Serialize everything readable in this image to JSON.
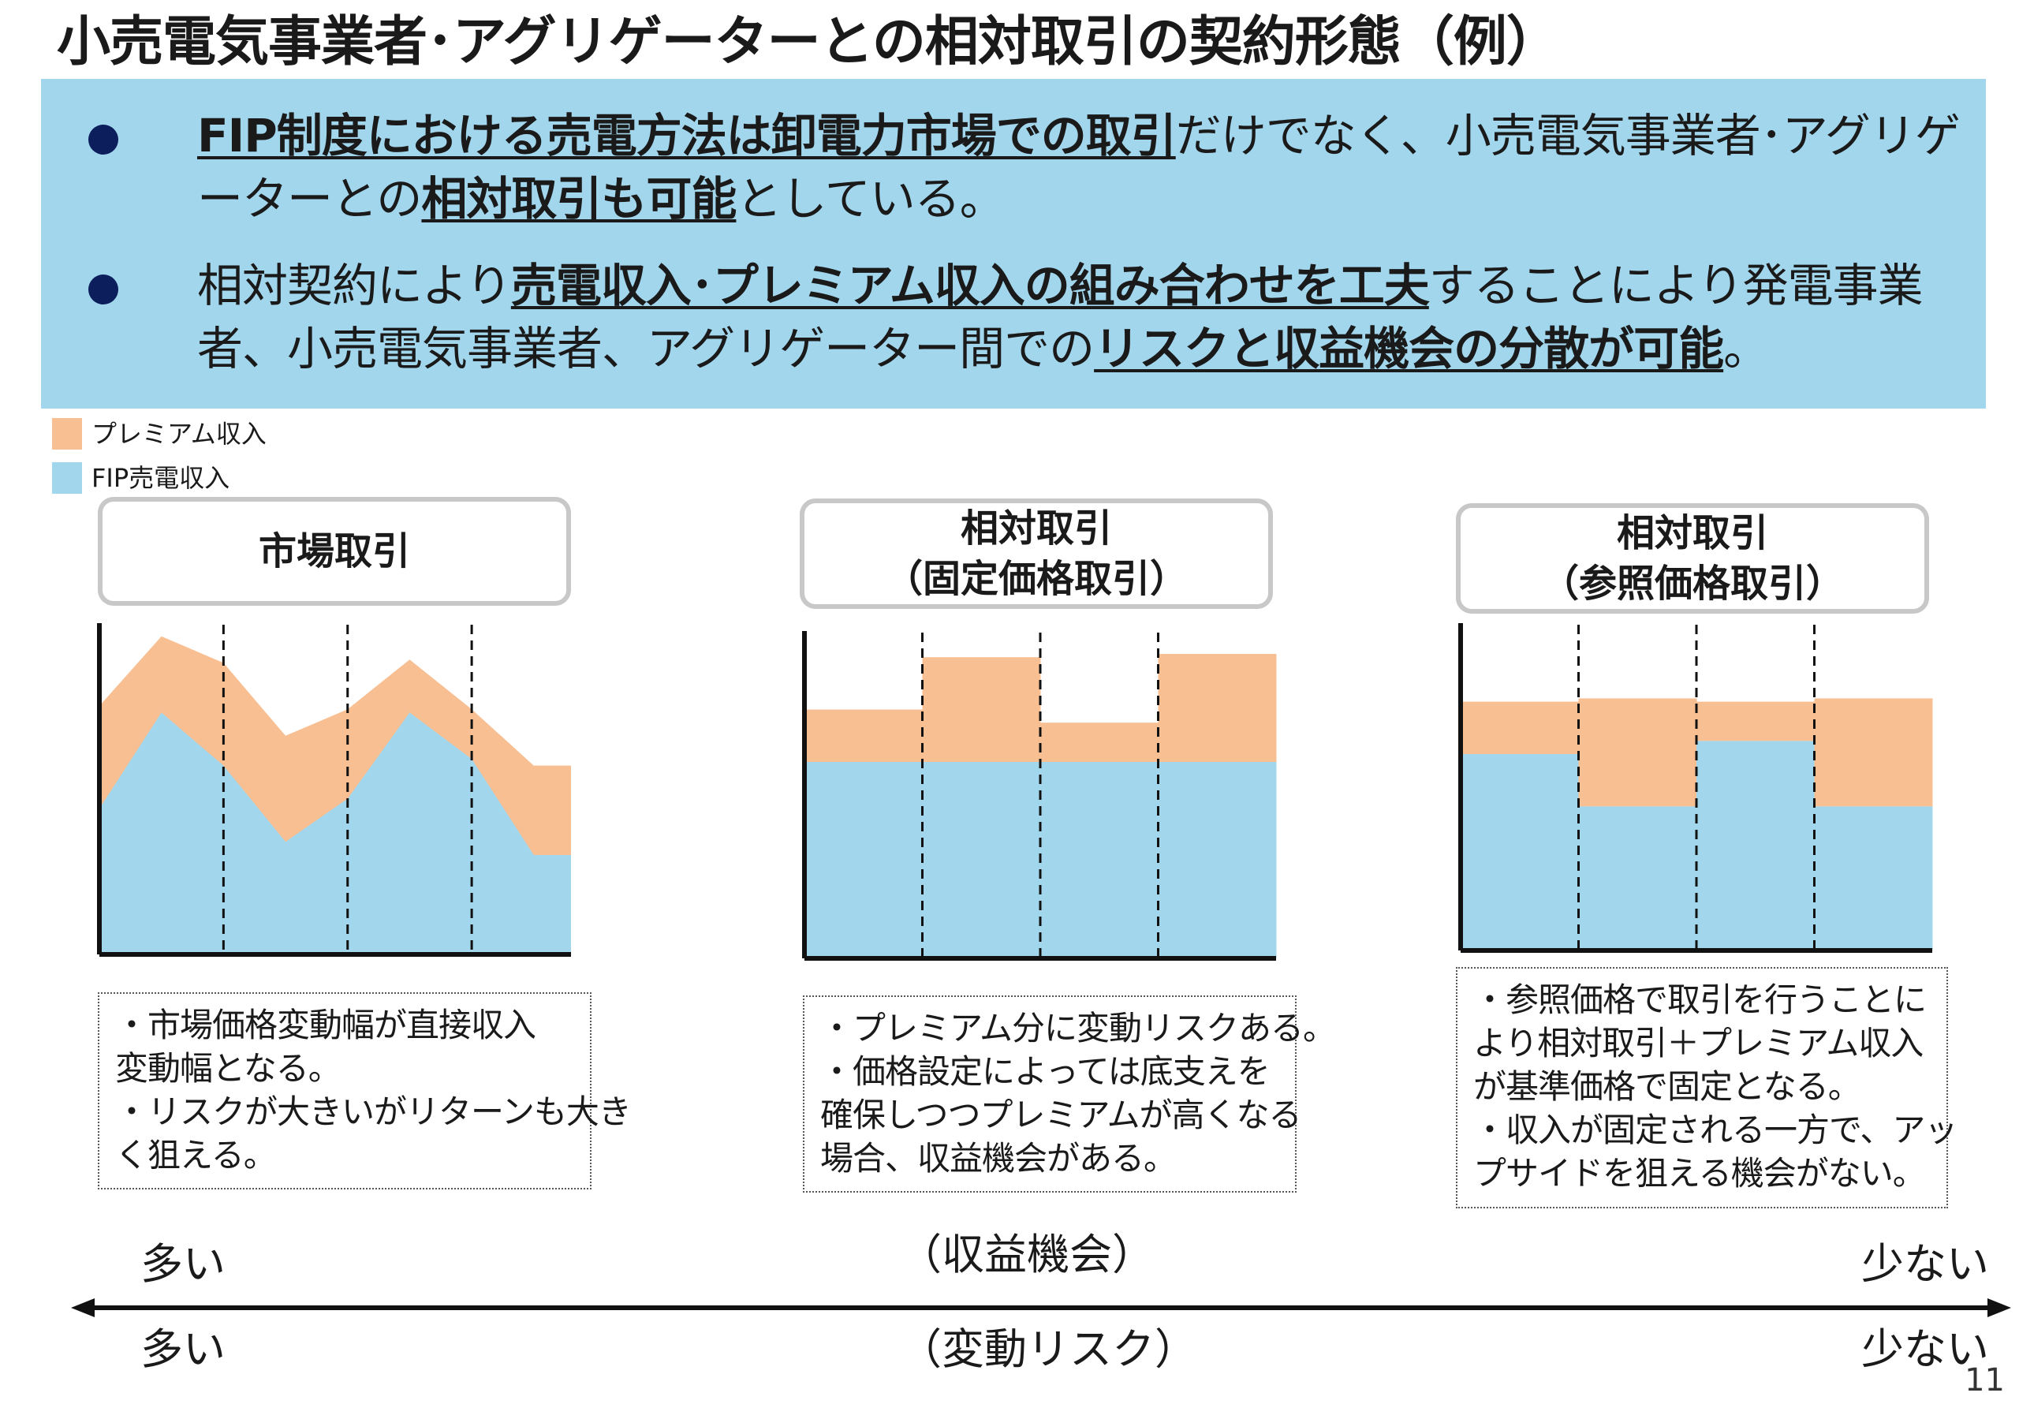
{
  "title": "小売電気事業者･アグリゲーターとの相対取引の契約形態（例）",
  "bullets": [
    {
      "parts": [
        {
          "text": "FIP制度における売電方法は卸電力市場での取引",
          "bold": true
        },
        {
          "text": "だけでなく、小売電気事業者･アグリゲーターとの",
          "bold": false
        },
        {
          "text": "相対取引も可能",
          "bold": true
        },
        {
          "text": "としている。",
          "bold": false
        }
      ]
    },
    {
      "parts": [
        {
          "text": "相対契約により",
          "bold": false
        },
        {
          "text": "売電収入･プレミアム収入の組み合わせを工夫",
          "bold": true
        },
        {
          "text": "することにより発電事業者、小売電気事業者、アグリゲーター間での",
          "bold": false
        },
        {
          "text": "リスクと収益機会の分散が可能",
          "bold": true
        },
        {
          "text": "。",
          "bold": false
        }
      ]
    }
  ],
  "legend": [
    {
      "label": "プレミアム収入",
      "color": "#f8bf93"
    },
    {
      "label": "FIP売電収入",
      "color": "#a2d6ec"
    }
  ],
  "panels": [
    {
      "title_lines": [
        "市場取引"
      ],
      "notes": [
        "・市場価格変動幅が直接収入",
        "変動幅となる。",
        "・リスクが大きいがリターンも大き",
        "く狙える。"
      ]
    },
    {
      "title_lines": [
        "相対取引",
        "（固定価格取引）"
      ],
      "notes": [
        "・プレミアム分に変動リスクある。",
        "・価格設定によっては底支えを",
        "確保しつつプレミアムが高くなる",
        "場合、収益機会がある。"
      ]
    },
    {
      "title_lines": [
        "相対取引",
        "（参照価格取引）"
      ],
      "notes": [
        "・参照価格で取引を行うことに",
        "より相対取引＋プレミアム収入",
        "が基準価格で固定となる。",
        "・収入が固定される一方で、アッ",
        "プサイドを狙える機会がない。"
      ]
    }
  ],
  "chart_data": [
    {
      "type": "area",
      "series": [
        {
          "name": "FIP売電収入",
          "x": [
            0,
            0.5,
            1,
            1.5,
            2,
            2.5,
            3,
            3.5,
            4
          ],
          "values": [
            44,
            73,
            57,
            34,
            47,
            73,
            59,
            30,
            30
          ]
        },
        {
          "name": "プレミアム収入",
          "x": [
            0,
            0.5,
            1,
            1.5,
            2,
            2.5,
            3,
            3.5,
            4
          ],
          "values": [
            31,
            23,
            31,
            32,
            27,
            16,
            15,
            27,
            27
          ]
        }
      ],
      "xlim": [
        0,
        3.8
      ],
      "ylim": [
        0,
        100
      ]
    },
    {
      "type": "bar",
      "categories": [
        "1",
        "2",
        "3",
        "4"
      ],
      "series": [
        {
          "name": "FIP売電収入",
          "values": [
            60,
            60,
            60,
            60
          ]
        },
        {
          "name": "プレミアム収入",
          "values": [
            16,
            32,
            12,
            33
          ]
        }
      ],
      "ylim": [
        0,
        100
      ]
    },
    {
      "type": "bar",
      "categories": [
        "1",
        "2",
        "3",
        "4"
      ],
      "series": [
        {
          "name": "FIP売電収入",
          "values": [
            60,
            44,
            64,
            44
          ]
        },
        {
          "name": "プレミアム収入",
          "values": [
            16,
            33,
            12,
            33
          ]
        }
      ],
      "ylim": [
        0,
        100
      ]
    }
  ],
  "axis": {
    "left_label": "多い",
    "right_label": "少ない",
    "center_top": "（収益機会）",
    "center_bottom": "（変動リスク）"
  },
  "page_number": "11"
}
